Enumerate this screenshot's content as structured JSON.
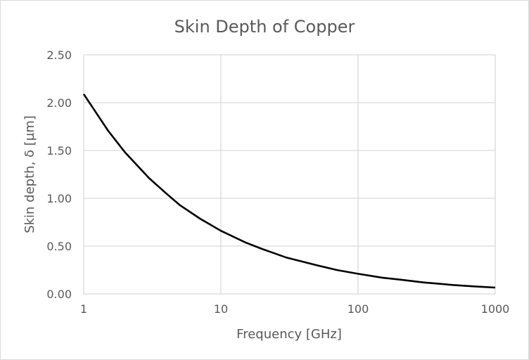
{
  "chart_data": {
    "type": "line",
    "title": "Skin Depth of Copper",
    "xlabel": "Frequency [GHz]",
    "ylabel": "Skin depth, δ [µm]",
    "x_scale": "log",
    "xlim": [
      1,
      1000
    ],
    "ylim": [
      0,
      2.5
    ],
    "x_ticks": [
      "1",
      "10",
      "100",
      "1000"
    ],
    "y_ticks": [
      "0.00",
      "0.50",
      "1.00",
      "1.50",
      "2.00",
      "2.50"
    ],
    "grid": true,
    "legend": "none",
    "line_color": "#000000",
    "series": [
      {
        "x": [
          1,
          1.5,
          2,
          3,
          4,
          5,
          7,
          10,
          15,
          20,
          30,
          50,
          70,
          100,
          150,
          200,
          300,
          500,
          700,
          1000
        ],
        "y": [
          2.09,
          1.71,
          1.48,
          1.21,
          1.05,
          0.93,
          0.79,
          0.66,
          0.54,
          0.47,
          0.38,
          0.3,
          0.25,
          0.21,
          0.17,
          0.15,
          0.12,
          0.093,
          0.079,
          0.066
        ]
      }
    ]
  }
}
